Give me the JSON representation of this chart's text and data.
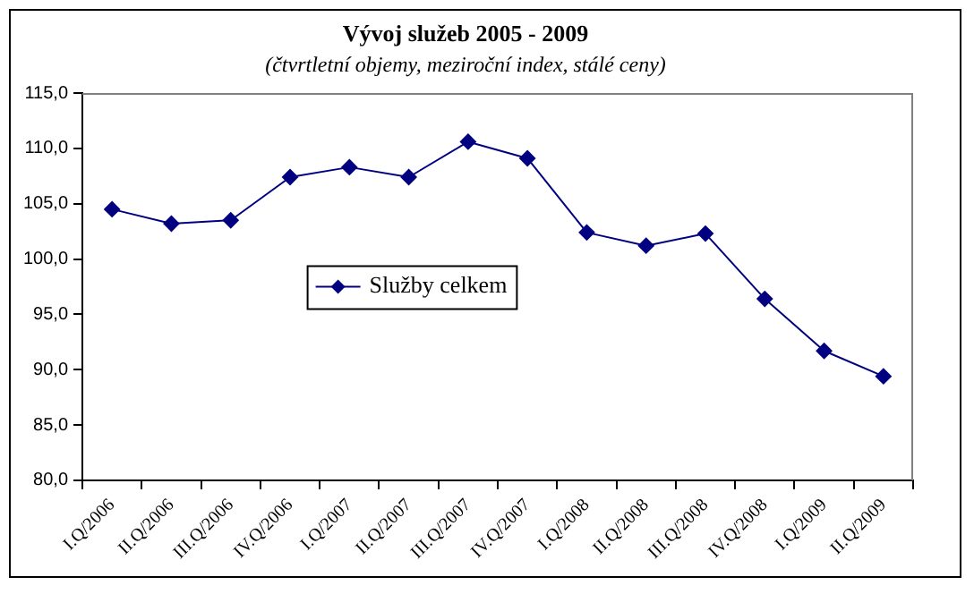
{
  "chart_data": {
    "type": "line",
    "title": "Vývoj služeb 2005 - 2009",
    "subtitle": "(čtvrtletní objemy, meziroční index, stálé ceny)",
    "categories": [
      "I.Q/2006",
      "II.Q/2006",
      "III.Q/2006",
      "IV.Q/2006",
      "I.Q/2007",
      "II.Q/2007",
      "III.Q/2007",
      "IV.Q/2007",
      "I.Q/2008",
      "II.Q/2008",
      "III.Q/2008",
      "IV.Q/2008",
      "I.Q/2009",
      "II.Q/2009"
    ],
    "series": [
      {
        "name": "Služby celkem",
        "color": "#000080",
        "values": [
          104.5,
          103.2,
          103.5,
          107.4,
          108.3,
          107.4,
          110.6,
          109.1,
          102.4,
          101.2,
          102.3,
          96.4,
          91.7,
          89.4
        ]
      }
    ],
    "ylim": [
      80,
      115
    ],
    "yticks": [
      {
        "value": 80,
        "label": "80,0"
      },
      {
        "value": 85,
        "label": "85,0"
      },
      {
        "value": 90,
        "label": "90,0"
      },
      {
        "value": 95,
        "label": "95,0"
      },
      {
        "value": 100,
        "label": "100,0"
      },
      {
        "value": 105,
        "label": "105,0"
      },
      {
        "value": 110,
        "label": "110,0"
      },
      {
        "value": 115,
        "label": "115,0"
      }
    ],
    "grid": false,
    "legend": "center",
    "marker": "diamond",
    "line_style": "solid"
  }
}
